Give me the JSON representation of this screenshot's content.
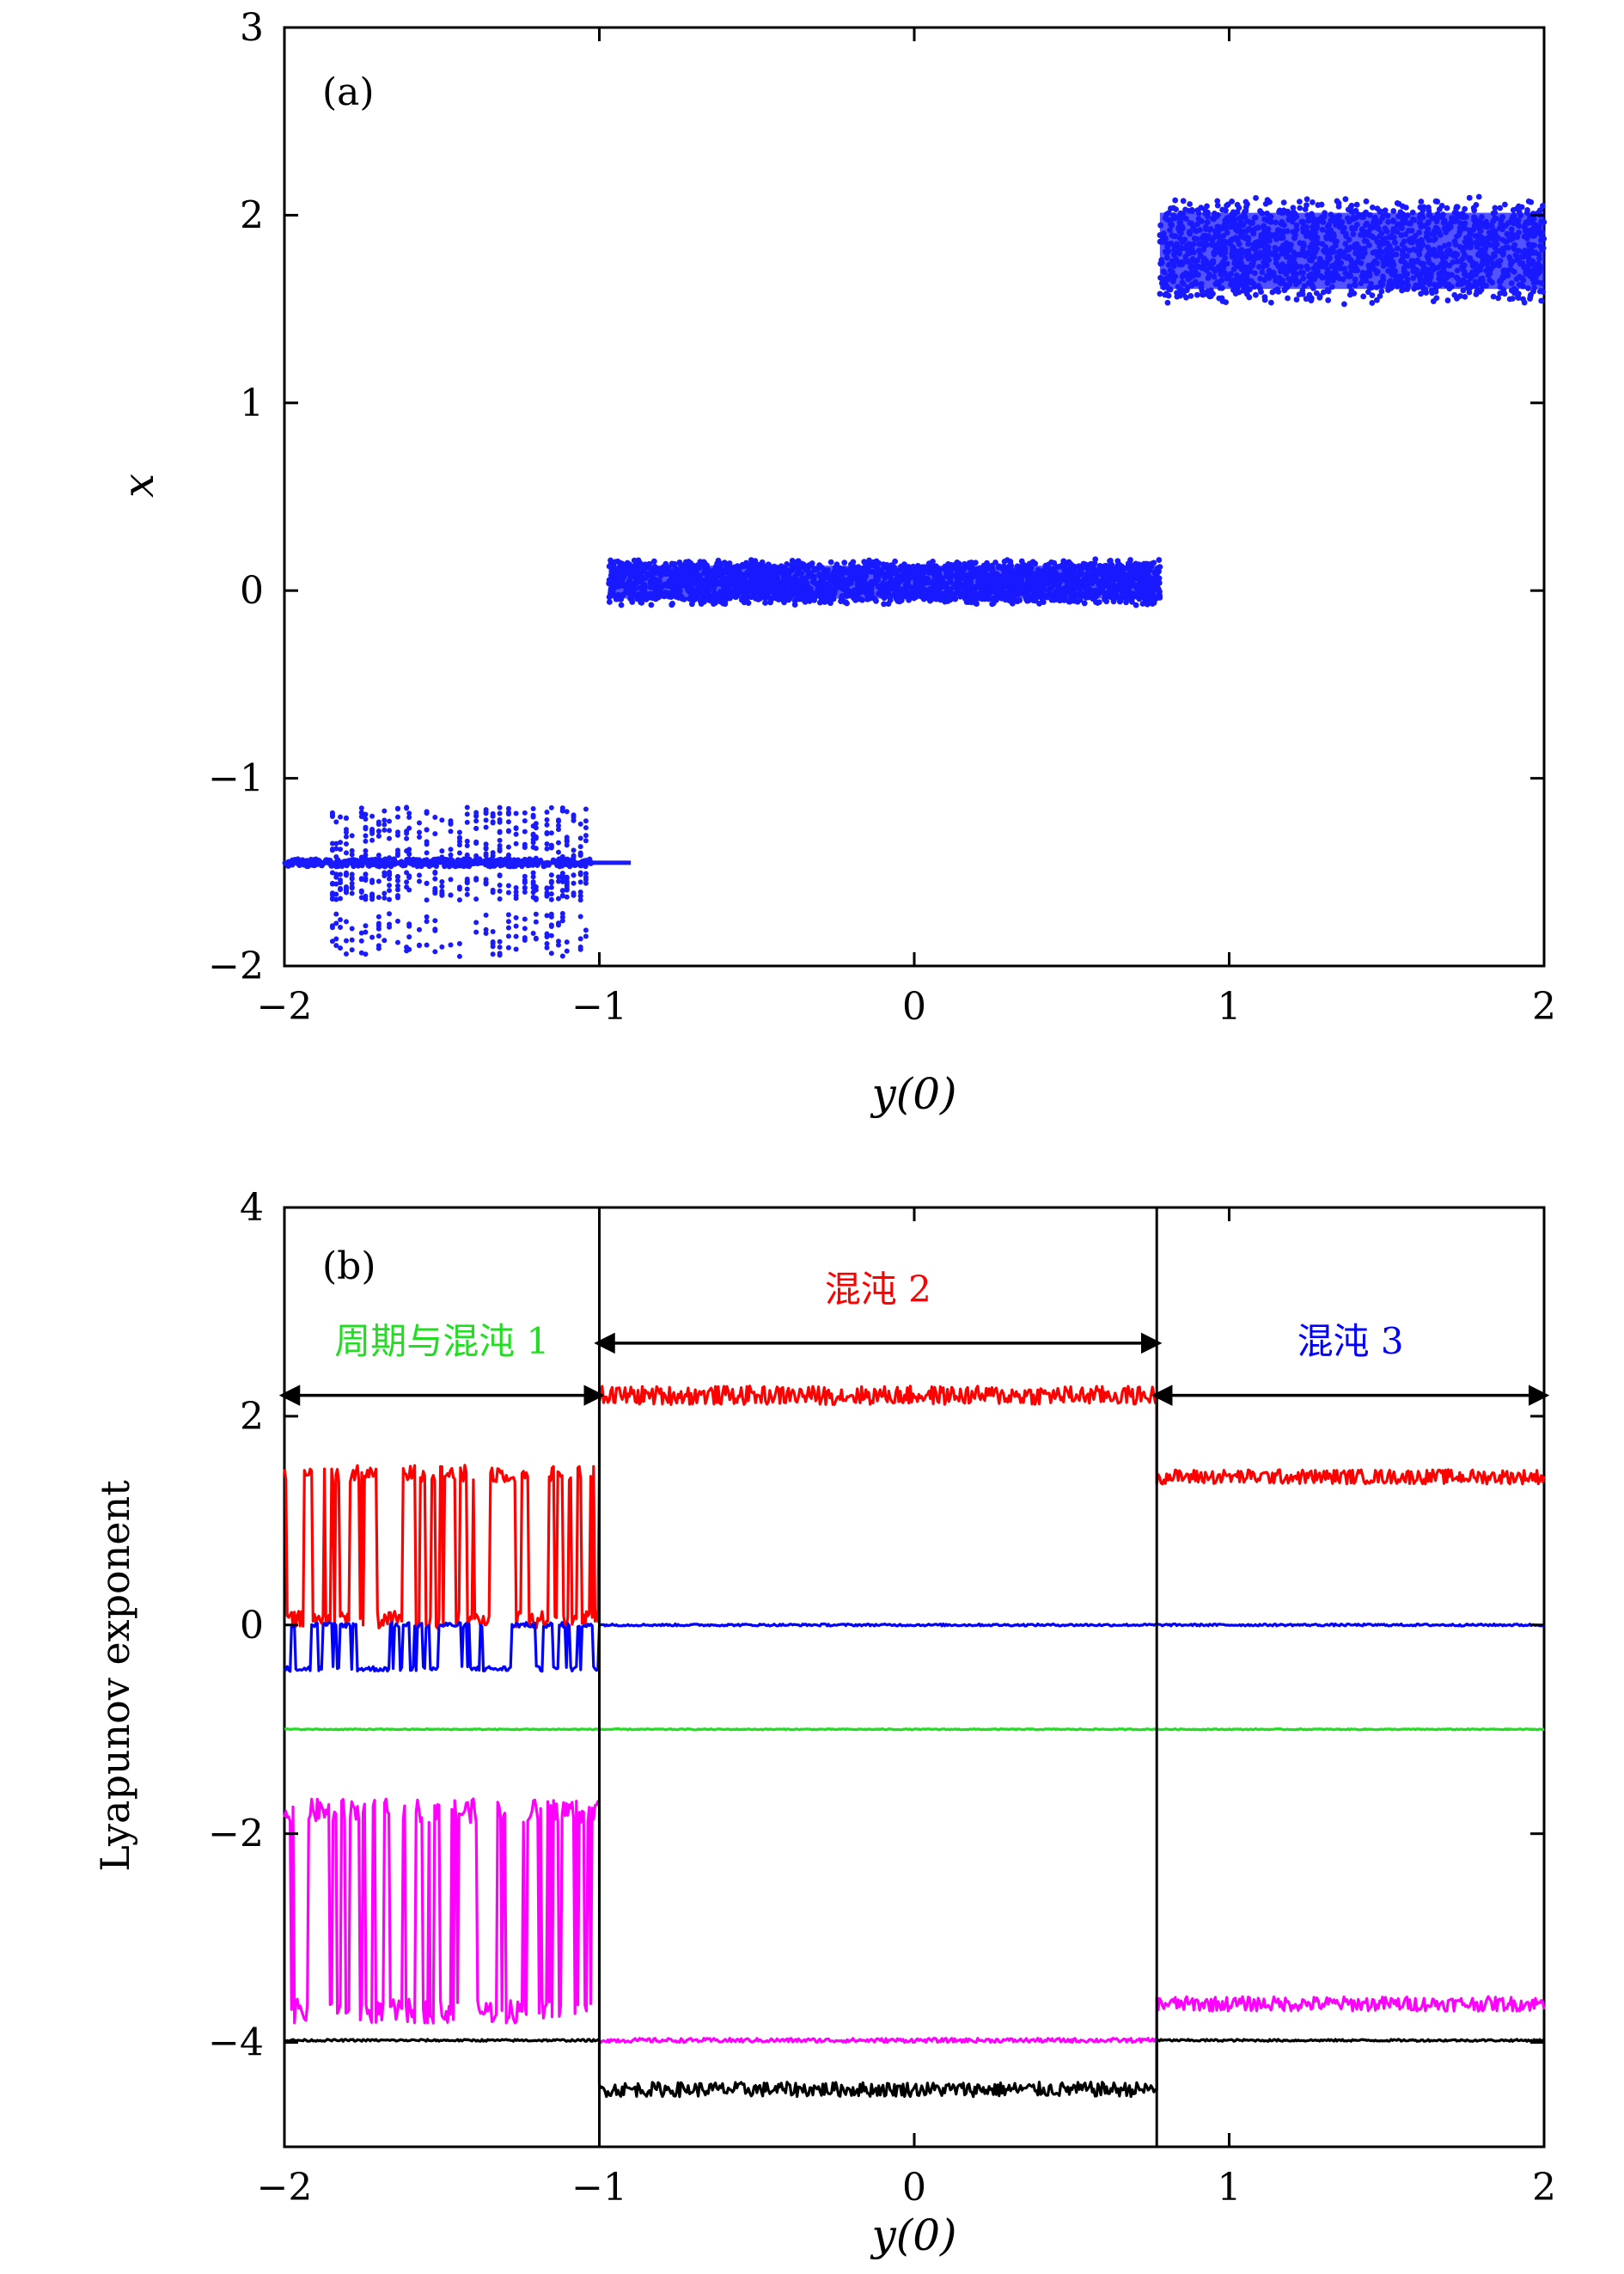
{
  "chart_data": [
    {
      "panel": "(a)",
      "type": "scatter",
      "title": "",
      "xlabel": "y(0)",
      "ylabel": "x",
      "xlim": [
        -2,
        2
      ],
      "ylim": [
        -2,
        3
      ],
      "xticks": [
        -2,
        -1,
        0,
        1,
        2
      ],
      "yticks": [
        -2,
        -1,
        0,
        1,
        2,
        3
      ],
      "xtick_labels": [
        "−2",
        "−1",
        "0",
        "1",
        "2"
      ],
      "ytick_labels": [
        "−2",
        "−1",
        "0",
        "1",
        "2",
        "3"
      ],
      "grid": false,
      "marker_color": "#1a1aff",
      "bands": [
        {
          "x": [
            -2.0,
            -1.02
          ],
          "y_center": -1.45,
          "y_spread": 0.04,
          "kind": "line"
        },
        {
          "x": [
            -1.85,
            -1.02
          ],
          "y_range": [
            -1.95,
            -1.15
          ],
          "kind": "periodic-stripes"
        },
        {
          "x": [
            -0.97,
            0.78
          ],
          "y_range": [
            -0.08,
            0.17
          ],
          "kind": "chaotic-band"
        },
        {
          "x": [
            0.78,
            2.0
          ],
          "y_range": [
            1.52,
            2.1
          ],
          "kind": "chaotic-band"
        }
      ]
    },
    {
      "panel": "(b)",
      "type": "line",
      "title": "",
      "xlabel": "y(0)",
      "ylabel": "Lyapunov exponent",
      "xlim": [
        -2,
        2
      ],
      "ylim": [
        -5,
        4
      ],
      "xticks": [
        -2,
        -1,
        0,
        1,
        2
      ],
      "yticks": [
        -4,
        -2,
        0,
        2,
        4
      ],
      "xtick_labels": [
        "−2",
        "−1",
        "0",
        "1",
        "2"
      ],
      "ytick_labels": [
        "−4",
        "−2",
        "0",
        "2",
        "4"
      ],
      "grid": false,
      "vlines": [
        -1.0,
        0.77
      ],
      "regions": [
        {
          "label": "周期与混沌 1",
          "color": "#22dd22",
          "x": [
            -2.0,
            -1.0
          ],
          "arrow_y": 2.2,
          "label_y": 2.6
        },
        {
          "label": "混沌 2",
          "color": "#ff0000",
          "x": [
            -1.0,
            0.77
          ],
          "arrow_y": 2.7,
          "label_y": 3.1
        },
        {
          "label": "混沌 3",
          "color": "#0000ff",
          "x": [
            0.77,
            2.0
          ],
          "arrow_y": 2.2,
          "label_y": 2.6
        }
      ],
      "series": [
        {
          "color": "#ff0000",
          "segments": [
            {
              "x": [
                -2.0,
                -1.0
              ],
              "pattern": "switching",
              "low": 0.05,
              "high": 1.45
            },
            {
              "x": [
                -1.0,
                0.77
              ],
              "level": 2.2,
              "noise": 0.09
            },
            {
              "x": [
                0.77,
                2.0
              ],
              "level": 1.42,
              "noise": 0.07
            }
          ]
        },
        {
          "color": "#0000ff",
          "segments": [
            {
              "x": [
                -2.0,
                -1.0
              ],
              "pattern": "switching",
              "low": -0.42,
              "high": 0.0
            },
            {
              "x": [
                -1.0,
                0.77
              ],
              "level": 0.0,
              "noise": 0.01
            },
            {
              "x": [
                0.77,
                2.0
              ],
              "level": 0.0,
              "noise": 0.01
            }
          ]
        },
        {
          "color": "#22dd22",
          "segments": [
            {
              "x": [
                -2.0,
                2.0
              ],
              "level": -1.0,
              "noise": 0.005
            }
          ]
        },
        {
          "color": "#ff00ff",
          "segments": [
            {
              "x": [
                -2.0,
                -1.0
              ],
              "pattern": "switching",
              "low": -3.7,
              "high": -1.78
            },
            {
              "x": [
                -1.0,
                0.77
              ],
              "level": -3.98,
              "noise": 0.02
            },
            {
              "x": [
                0.77,
                2.0
              ],
              "level": -3.63,
              "noise": 0.07
            }
          ]
        },
        {
          "color": "#000000",
          "segments": [
            {
              "x": [
                -2.0,
                -1.0
              ],
              "level": -3.98,
              "noise": 0.01
            },
            {
              "x": [
                -1.0,
                0.77
              ],
              "level": -4.45,
              "noise": 0.07
            },
            {
              "x": [
                0.77,
                2.0
              ],
              "level": -3.98,
              "noise": 0.01
            }
          ]
        }
      ]
    }
  ]
}
